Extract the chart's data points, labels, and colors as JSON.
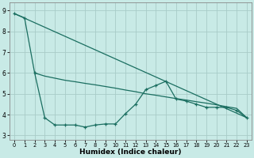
{
  "background_color": "#c8eae6",
  "grid_color": "#a8ccc8",
  "line_color": "#1a6e60",
  "xlim": [
    -0.5,
    23.5
  ],
  "ylim": [
    2.8,
    9.4
  ],
  "xtick_vals": [
    0,
    1,
    2,
    3,
    4,
    5,
    6,
    7,
    8,
    9,
    10,
    11,
    12,
    13,
    14,
    15,
    16,
    17,
    18,
    19,
    20,
    21,
    22,
    23
  ],
  "ytick_vals": [
    3,
    4,
    5,
    6,
    7,
    8,
    9
  ],
  "xlabel": "Humidex (Indice chaleur)",
  "line_jagged_x": [
    0,
    1,
    2,
    3,
    4,
    5,
    6,
    7,
    8,
    9,
    10,
    11,
    12,
    13,
    14,
    15,
    16,
    17,
    18,
    19,
    20,
    21,
    22,
    23
  ],
  "line_jagged_y": [
    8.85,
    8.65,
    6.0,
    3.85,
    3.5,
    3.5,
    3.5,
    3.4,
    3.5,
    3.55,
    3.55,
    4.05,
    4.5,
    5.2,
    5.4,
    5.6,
    4.75,
    4.65,
    4.5,
    4.35,
    4.35,
    4.35,
    4.2,
    3.85
  ],
  "line_trend_x": [
    0,
    23
  ],
  "line_trend_y": [
    8.85,
    3.85
  ],
  "line_upper_x": [
    2,
    3,
    4,
    5,
    6,
    7,
    8,
    9,
    10,
    11,
    12,
    13,
    14,
    15,
    16,
    17,
    18,
    19,
    20,
    21,
    22,
    23
  ],
  "line_upper_y": [
    6.0,
    5.85,
    5.75,
    5.65,
    5.58,
    5.5,
    5.43,
    5.35,
    5.27,
    5.18,
    5.1,
    5.0,
    4.93,
    4.85,
    4.77,
    4.7,
    4.62,
    4.55,
    4.47,
    4.38,
    4.3,
    3.85
  ]
}
